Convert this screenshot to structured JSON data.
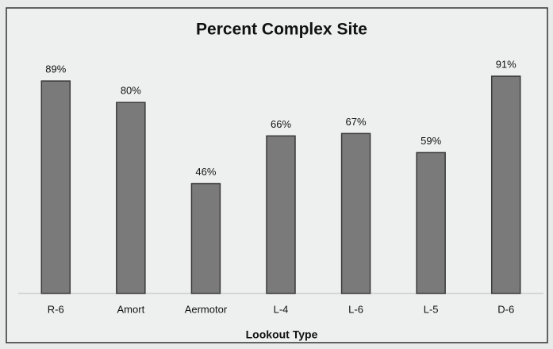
{
  "chart_data": {
    "type": "bar",
    "title": "Percent Complex Site",
    "categories": [
      "R-6",
      "Amort",
      "Aermotor",
      "L-4",
      "L-6",
      "L-5",
      "D-6"
    ],
    "values": [
      89,
      80,
      46,
      66,
      67,
      59,
      91
    ],
    "value_labels": [
      "89%",
      "80%",
      "46%",
      "66%",
      "67%",
      "59%",
      "91%"
    ],
    "x_label": "Lookout Type",
    "color": "#7a7a7a"
  }
}
